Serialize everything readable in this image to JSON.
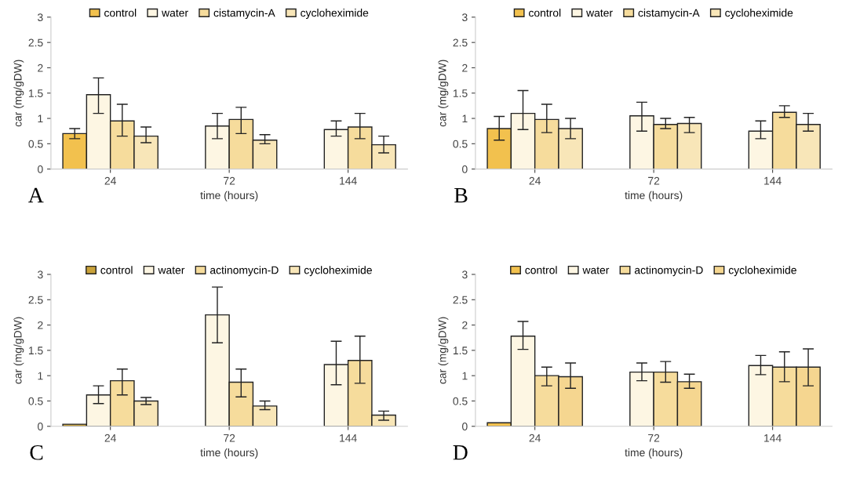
{
  "chart_data": [
    {
      "type": "bar",
      "categories": [
        "24",
        "72",
        "144"
      ],
      "xlabel": "time (hours)",
      "ylabel": "car (mg/gDW)",
      "annotations": [
        "A"
      ],
      "ylim": [
        0,
        3
      ],
      "yticks": [
        0,
        0.5,
        1,
        1.5,
        2,
        2.5,
        3
      ],
      "legend": "top",
      "grid": false,
      "series": [
        {
          "name": "control",
          "color": "#f2c14e",
          "values": [
            0.7,
            null,
            null
          ],
          "errors": [
            [
              0.6,
              0.8
            ],
            null,
            null
          ]
        },
        {
          "name": "water",
          "color": "#fdf6e3",
          "values": [
            1.47,
            0.85,
            0.78
          ],
          "errors": [
            [
              1.1,
              1.8
            ],
            [
              0.6,
              1.1
            ],
            [
              0.65,
              0.95
            ]
          ]
        },
        {
          "name": "cistamycin-A",
          "color": "#f6dc9c",
          "values": [
            0.95,
            0.98,
            0.83
          ],
          "errors": [
            [
              0.65,
              1.28
            ],
            [
              0.7,
              1.22
            ],
            [
              0.6,
              1.1
            ]
          ]
        },
        {
          "name": "cycloheximide",
          "color": "#f8e6b8",
          "values": [
            0.65,
            0.57,
            0.48
          ],
          "errors": [
            [
              0.52,
              0.83
            ],
            [
              0.5,
              0.68
            ],
            [
              0.32,
              0.65
            ]
          ]
        }
      ]
    },
    {
      "type": "bar",
      "categories": [
        "24",
        "72",
        "144"
      ],
      "xlabel": "time (hours)",
      "ylabel": "car (mg/gDW)",
      "annotations": [
        "B"
      ],
      "ylim": [
        0,
        3
      ],
      "yticks": [
        0,
        0.5,
        1,
        1.5,
        2,
        2.5,
        3
      ],
      "legend": "top",
      "grid": false,
      "series": [
        {
          "name": "control",
          "color": "#f2c14e",
          "values": [
            0.8,
            null,
            null
          ],
          "errors": [
            [
              0.57,
              1.04
            ],
            null,
            null
          ]
        },
        {
          "name": "water",
          "color": "#fdf6e3",
          "values": [
            1.1,
            1.05,
            0.75
          ],
          "errors": [
            [
              0.78,
              1.55
            ],
            [
              0.75,
              1.32
            ],
            [
              0.6,
              0.95
            ]
          ]
        },
        {
          "name": "cistamycin-A",
          "color": "#f6dc9c",
          "values": [
            0.98,
            0.88,
            1.12
          ],
          "errors": [
            [
              0.72,
              1.28
            ],
            [
              0.8,
              1.0
            ],
            [
              1.02,
              1.25
            ]
          ]
        },
        {
          "name": "cycloheximide",
          "color": "#f8e6b8",
          "values": [
            0.8,
            0.9,
            0.88
          ],
          "errors": [
            [
              0.6,
              1.0
            ],
            [
              0.72,
              1.02
            ],
            [
              0.75,
              1.1
            ]
          ]
        }
      ]
    },
    {
      "type": "bar",
      "categories": [
        "24",
        "72",
        "144"
      ],
      "xlabel": "time (hours)",
      "ylabel": "car (mg/gDW)",
      "annotations": [
        "C"
      ],
      "ylim": [
        0,
        3
      ],
      "yticks": [
        0,
        0.5,
        1,
        1.5,
        2,
        2.5,
        3
      ],
      "legend": "top",
      "grid": false,
      "series": [
        {
          "name": "control",
          "color": "#c9a23a",
          "values": [
            0.04,
            null,
            null
          ],
          "errors": [
            null,
            null,
            null
          ]
        },
        {
          "name": "water",
          "color": "#fdf6e3",
          "values": [
            0.62,
            2.2,
            1.22
          ],
          "errors": [
            [
              0.45,
              0.8
            ],
            [
              1.65,
              2.75
            ],
            [
              0.82,
              1.68
            ]
          ]
        },
        {
          "name": "actinomycin-D",
          "color": "#f6dc9c",
          "values": [
            0.9,
            0.87,
            1.3
          ],
          "errors": [
            [
              0.62,
              1.13
            ],
            [
              0.58,
              1.13
            ],
            [
              0.85,
              1.78
            ]
          ]
        },
        {
          "name": "cycloheximide",
          "color": "#f8e6b8",
          "values": [
            0.5,
            0.4,
            0.22
          ],
          "errors": [
            [
              0.43,
              0.57
            ],
            [
              0.33,
              0.5
            ],
            [
              0.12,
              0.3
            ]
          ]
        }
      ]
    },
    {
      "type": "bar",
      "categories": [
        "24",
        "72",
        "144"
      ],
      "xlabel": "time (hours)",
      "ylabel": "car (mg/gDW)",
      "annotations": [
        "D"
      ],
      "ylim": [
        0,
        3
      ],
      "yticks": [
        0,
        0.5,
        1,
        1.5,
        2,
        2.5,
        3
      ],
      "legend": "top",
      "grid": false,
      "series": [
        {
          "name": "control",
          "color": "#f2c14e",
          "values": [
            0.07,
            null,
            null
          ],
          "errors": [
            null,
            null,
            null
          ]
        },
        {
          "name": "water",
          "color": "#fdf6e3",
          "values": [
            1.78,
            1.07,
            1.2
          ],
          "errors": [
            [
              1.52,
              2.07
            ],
            [
              0.9,
              1.25
            ],
            [
              1.02,
              1.4
            ]
          ]
        },
        {
          "name": "actinomycin-D",
          "color": "#f6dc9c",
          "values": [
            1.0,
            1.07,
            1.17
          ],
          "errors": [
            [
              0.8,
              1.17
            ],
            [
              0.87,
              1.28
            ],
            [
              0.88,
              1.47
            ]
          ]
        },
        {
          "name": "cycloheximide",
          "color": "#f5d690",
          "values": [
            0.98,
            0.88,
            1.17
          ],
          "errors": [
            [
              0.75,
              1.25
            ],
            [
              0.75,
              1.03
            ],
            [
              0.8,
              1.53
            ]
          ]
        }
      ]
    }
  ]
}
